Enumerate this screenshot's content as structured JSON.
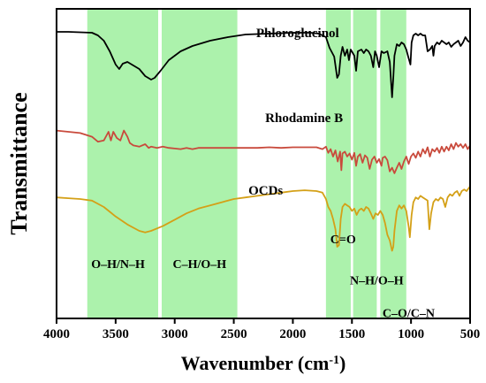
{
  "chart_data": {
    "type": "line",
    "xlabel": "Wavenumber (cm",
    "xlabel_sup": "-1",
    "xlabel_close": ")",
    "ylabel": "Transmittance",
    "xlim": [
      4000,
      500
    ],
    "x_reversed": true,
    "x_ticks": [
      4000,
      3500,
      3000,
      2500,
      2000,
      1500,
      1000,
      500
    ],
    "x_tick_labels": [
      "4000",
      "3500",
      "3000",
      "2500",
      "2000",
      "1500",
      "1000",
      "500"
    ],
    "y_ticks_shown": false,
    "grid": false,
    "bands": [
      {
        "from": 3740,
        "to": 3140,
        "color": "#90ee90"
      },
      {
        "from": 3110,
        "to": 2470,
        "color": "#90ee90"
      },
      {
        "from": 1720,
        "to": 1510,
        "color": "#90ee90"
      },
      {
        "from": 1490,
        "to": 1290,
        "color": "#90ee90"
      },
      {
        "from": 1260,
        "to": 1040,
        "color": "#90ee90"
      }
    ],
    "annotations": [
      {
        "text": "O–H/N–H",
        "x": 3480,
        "y_frac": 0.88
      },
      {
        "text": "C–H/O–H",
        "x": 2790,
        "y_frac": 0.88
      },
      {
        "text": "C=O",
        "x": 1575,
        "y_frac": 0.79
      },
      {
        "text": "N–H/O–H",
        "x": 1290,
        "y_frac": 0.94
      },
      {
        "text": "C–O/C–N",
        "x": 1020,
        "y_frac": 1.06
      }
    ],
    "series": [
      {
        "name": "Phloroglucinol",
        "color": "#000000",
        "label_x": 1960,
        "points": [
          [
            4000,
            0.82
          ],
          [
            3900,
            0.82
          ],
          [
            3800,
            0.815
          ],
          [
            3700,
            0.81
          ],
          [
            3650,
            0.78
          ],
          [
            3600,
            0.72
          ],
          [
            3550,
            0.6
          ],
          [
            3500,
            0.45
          ],
          [
            3470,
            0.4
          ],
          [
            3440,
            0.46
          ],
          [
            3400,
            0.48
          ],
          [
            3350,
            0.44
          ],
          [
            3300,
            0.4
          ],
          [
            3250,
            0.32
          ],
          [
            3200,
            0.28
          ],
          [
            3170,
            0.3
          ],
          [
            3120,
            0.38
          ],
          [
            3050,
            0.5
          ],
          [
            2950,
            0.6
          ],
          [
            2850,
            0.66
          ],
          [
            2700,
            0.72
          ],
          [
            2550,
            0.76
          ],
          [
            2400,
            0.79
          ],
          [
            2200,
            0.8
          ],
          [
            2000,
            0.81
          ],
          [
            1850,
            0.81
          ],
          [
            1780,
            0.8
          ],
          [
            1720,
            0.76
          ],
          [
            1690,
            0.64
          ],
          [
            1650,
            0.54
          ],
          [
            1625,
            0.3
          ],
          [
            1610,
            0.34
          ],
          [
            1595,
            0.55
          ],
          [
            1580,
            0.65
          ],
          [
            1560,
            0.55
          ],
          [
            1540,
            0.62
          ],
          [
            1525,
            0.5
          ],
          [
            1510,
            0.62
          ],
          [
            1480,
            0.55
          ],
          [
            1465,
            0.38
          ],
          [
            1450,
            0.6
          ],
          [
            1420,
            0.62
          ],
          [
            1400,
            0.58
          ],
          [
            1380,
            0.62
          ],
          [
            1360,
            0.6
          ],
          [
            1340,
            0.55
          ],
          [
            1320,
            0.42
          ],
          [
            1305,
            0.6
          ],
          [
            1290,
            0.55
          ],
          [
            1270,
            0.42
          ],
          [
            1250,
            0.6
          ],
          [
            1230,
            0.58
          ],
          [
            1200,
            0.6
          ],
          [
            1180,
            0.48
          ],
          [
            1160,
            0.08
          ],
          [
            1150,
            0.3
          ],
          [
            1140,
            0.55
          ],
          [
            1120,
            0.68
          ],
          [
            1100,
            0.66
          ],
          [
            1080,
            0.7
          ],
          [
            1060,
            0.68
          ],
          [
            1040,
            0.62
          ],
          [
            1020,
            0.52
          ],
          [
            1005,
            0.45
          ],
          [
            995,
            0.7
          ],
          [
            980,
            0.78
          ],
          [
            960,
            0.8
          ],
          [
            940,
            0.78
          ],
          [
            920,
            0.8
          ],
          [
            900,
            0.78
          ],
          [
            880,
            0.78
          ],
          [
            860,
            0.6
          ],
          [
            840,
            0.62
          ],
          [
            820,
            0.66
          ],
          [
            810,
            0.55
          ],
          [
            800,
            0.66
          ],
          [
            780,
            0.7
          ],
          [
            760,
            0.68
          ],
          [
            740,
            0.72
          ],
          [
            720,
            0.7
          ],
          [
            700,
            0.68
          ],
          [
            680,
            0.7
          ],
          [
            660,
            0.65
          ],
          [
            640,
            0.68
          ],
          [
            620,
            0.7
          ],
          [
            600,
            0.72
          ],
          [
            580,
            0.66
          ],
          [
            560,
            0.7
          ],
          [
            540,
            0.76
          ],
          [
            520,
            0.72
          ],
          [
            500,
            0.7
          ]
        ]
      },
      {
        "name": "Rhodamine B",
        "color": "#c94a3c",
        "label_x": 1905,
        "points": [
          [
            4000,
            0.72
          ],
          [
            3900,
            0.7
          ],
          [
            3800,
            0.68
          ],
          [
            3700,
            0.62
          ],
          [
            3650,
            0.54
          ],
          [
            3600,
            0.56
          ],
          [
            3560,
            0.7
          ],
          [
            3540,
            0.56
          ],
          [
            3520,
            0.7
          ],
          [
            3490,
            0.6
          ],
          [
            3460,
            0.56
          ],
          [
            3430,
            0.72
          ],
          [
            3400,
            0.62
          ],
          [
            3380,
            0.52
          ],
          [
            3350,
            0.48
          ],
          [
            3300,
            0.46
          ],
          [
            3250,
            0.5
          ],
          [
            3220,
            0.44
          ],
          [
            3200,
            0.46
          ],
          [
            3150,
            0.44
          ],
          [
            3100,
            0.46
          ],
          [
            3050,
            0.44
          ],
          [
            3000,
            0.43
          ],
          [
            2950,
            0.42
          ],
          [
            2900,
            0.44
          ],
          [
            2850,
            0.42
          ],
          [
            2800,
            0.44
          ],
          [
            2700,
            0.44
          ],
          [
            2600,
            0.44
          ],
          [
            2500,
            0.44
          ],
          [
            2400,
            0.44
          ],
          [
            2300,
            0.44
          ],
          [
            2200,
            0.45
          ],
          [
            2100,
            0.44
          ],
          [
            2000,
            0.45
          ],
          [
            1900,
            0.45
          ],
          [
            1800,
            0.45
          ],
          [
            1750,
            0.42
          ],
          [
            1720,
            0.46
          ],
          [
            1700,
            0.36
          ],
          [
            1680,
            0.42
          ],
          [
            1660,
            0.3
          ],
          [
            1640,
            0.4
          ],
          [
            1620,
            0.22
          ],
          [
            1600,
            0.38
          ],
          [
            1590,
            0.08
          ],
          [
            1580,
            0.35
          ],
          [
            1560,
            0.38
          ],
          [
            1540,
            0.3
          ],
          [
            1520,
            0.35
          ],
          [
            1500,
            0.25
          ],
          [
            1480,
            0.36
          ],
          [
            1465,
            0.15
          ],
          [
            1450,
            0.3
          ],
          [
            1430,
            0.34
          ],
          [
            1410,
            0.2
          ],
          [
            1390,
            0.32
          ],
          [
            1370,
            0.28
          ],
          [
            1350,
            0.1
          ],
          [
            1330,
            0.25
          ],
          [
            1310,
            0.3
          ],
          [
            1290,
            0.2
          ],
          [
            1270,
            0.26
          ],
          [
            1250,
            0.15
          ],
          [
            1240,
            0.28
          ],
          [
            1220,
            0.3
          ],
          [
            1200,
            0.24
          ],
          [
            1180,
            0.06
          ],
          [
            1160,
            0.12
          ],
          [
            1140,
            0.03
          ],
          [
            1120,
            0.12
          ],
          [
            1100,
            0.2
          ],
          [
            1080,
            0.1
          ],
          [
            1060,
            0.22
          ],
          [
            1040,
            0.3
          ],
          [
            1020,
            0.18
          ],
          [
            1000,
            0.3
          ],
          [
            980,
            0.35
          ],
          [
            960,
            0.28
          ],
          [
            940,
            0.38
          ],
          [
            920,
            0.3
          ],
          [
            900,
            0.42
          ],
          [
            880,
            0.35
          ],
          [
            860,
            0.45
          ],
          [
            840,
            0.3
          ],
          [
            820,
            0.42
          ],
          [
            800,
            0.38
          ],
          [
            780,
            0.44
          ],
          [
            760,
            0.36
          ],
          [
            740,
            0.46
          ],
          [
            720,
            0.38
          ],
          [
            700,
            0.46
          ],
          [
            680,
            0.4
          ],
          [
            660,
            0.5
          ],
          [
            640,
            0.42
          ],
          [
            620,
            0.52
          ],
          [
            600,
            0.46
          ],
          [
            580,
            0.5
          ],
          [
            560,
            0.44
          ],
          [
            540,
            0.5
          ],
          [
            520,
            0.42
          ],
          [
            500,
            0.48
          ]
        ]
      },
      {
        "name": "OCDs",
        "color": "#d4a017",
        "label_x": 2230,
        "points": [
          [
            4000,
            0.72
          ],
          [
            3900,
            0.71
          ],
          [
            3800,
            0.7
          ],
          [
            3700,
            0.68
          ],
          [
            3600,
            0.6
          ],
          [
            3500,
            0.48
          ],
          [
            3400,
            0.38
          ],
          [
            3300,
            0.3
          ],
          [
            3250,
            0.28
          ],
          [
            3200,
            0.3
          ],
          [
            3100,
            0.36
          ],
          [
            3000,
            0.44
          ],
          [
            2900,
            0.52
          ],
          [
            2800,
            0.58
          ],
          [
            2700,
            0.62
          ],
          [
            2600,
            0.66
          ],
          [
            2500,
            0.7
          ],
          [
            2400,
            0.72
          ],
          [
            2300,
            0.74
          ],
          [
            2200,
            0.76
          ],
          [
            2100,
            0.78
          ],
          [
            2000,
            0.8
          ],
          [
            1900,
            0.81
          ],
          [
            1800,
            0.8
          ],
          [
            1750,
            0.78
          ],
          [
            1720,
            0.7
          ],
          [
            1700,
            0.6
          ],
          [
            1680,
            0.55
          ],
          [
            1660,
            0.45
          ],
          [
            1640,
            0.32
          ],
          [
            1625,
            0.1
          ],
          [
            1610,
            0.12
          ],
          [
            1595,
            0.45
          ],
          [
            1580,
            0.6
          ],
          [
            1560,
            0.64
          ],
          [
            1540,
            0.62
          ],
          [
            1520,
            0.6
          ],
          [
            1500,
            0.55
          ],
          [
            1480,
            0.58
          ],
          [
            1460,
            0.5
          ],
          [
            1440,
            0.56
          ],
          [
            1420,
            0.58
          ],
          [
            1400,
            0.55
          ],
          [
            1380,
            0.6
          ],
          [
            1360,
            0.58
          ],
          [
            1340,
            0.52
          ],
          [
            1320,
            0.45
          ],
          [
            1300,
            0.52
          ],
          [
            1280,
            0.5
          ],
          [
            1260,
            0.55
          ],
          [
            1240,
            0.5
          ],
          [
            1220,
            0.4
          ],
          [
            1200,
            0.25
          ],
          [
            1180,
            0.18
          ],
          [
            1160,
            0.05
          ],
          [
            1150,
            0.1
          ],
          [
            1140,
            0.3
          ],
          [
            1120,
            0.55
          ],
          [
            1100,
            0.62
          ],
          [
            1080,
            0.58
          ],
          [
            1060,
            0.62
          ],
          [
            1040,
            0.55
          ],
          [
            1020,
            0.35
          ],
          [
            1010,
            0.22
          ],
          [
            995,
            0.5
          ],
          [
            980,
            0.66
          ],
          [
            960,
            0.72
          ],
          [
            940,
            0.7
          ],
          [
            920,
            0.74
          ],
          [
            900,
            0.72
          ],
          [
            880,
            0.7
          ],
          [
            860,
            0.68
          ],
          [
            845,
            0.32
          ],
          [
            830,
            0.52
          ],
          [
            810,
            0.66
          ],
          [
            790,
            0.7
          ],
          [
            770,
            0.68
          ],
          [
            750,
            0.72
          ],
          [
            730,
            0.7
          ],
          [
            710,
            0.6
          ],
          [
            690,
            0.72
          ],
          [
            670,
            0.76
          ],
          [
            650,
            0.74
          ],
          [
            630,
            0.78
          ],
          [
            610,
            0.8
          ],
          [
            590,
            0.74
          ],
          [
            570,
            0.8
          ],
          [
            550,
            0.82
          ],
          [
            530,
            0.8
          ],
          [
            510,
            0.84
          ],
          [
            500,
            0.86
          ]
        ]
      }
    ]
  }
}
